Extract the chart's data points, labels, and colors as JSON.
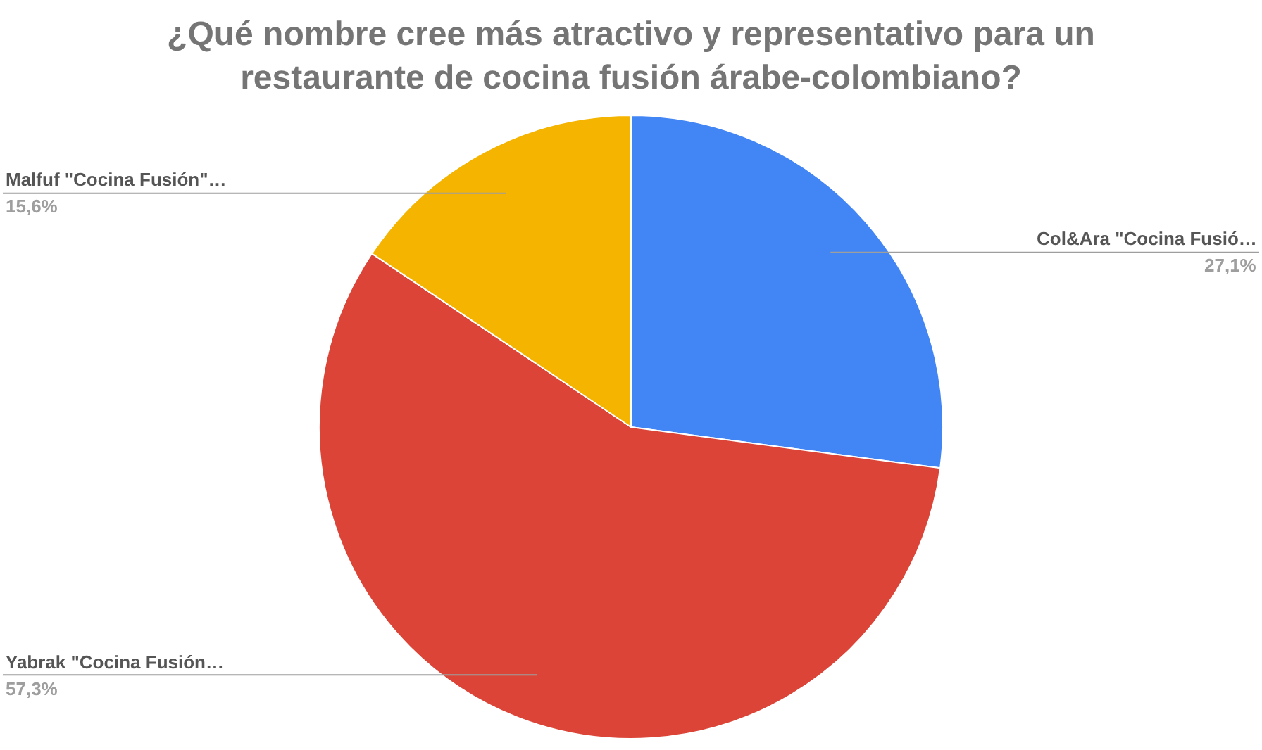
{
  "chart_data": {
    "type": "pie",
    "title": "¿Qué nombre cree más atractivo y representativo para un restaurante de cocina fusión árabe-colombiano?",
    "categories": [
      "Col&Ara \"Cocina Fusió…",
      "Yabrak \"Cocina Fusión…",
      "Malfuf \"Cocina Fusión\"…"
    ],
    "values": [
      27.1,
      57.3,
      15.6
    ],
    "colors": [
      "#4285f4",
      "#db4437",
      "#f4b400"
    ],
    "value_labels": [
      "27,1%",
      "57,3%",
      "15,6%"
    ],
    "legend": false
  }
}
